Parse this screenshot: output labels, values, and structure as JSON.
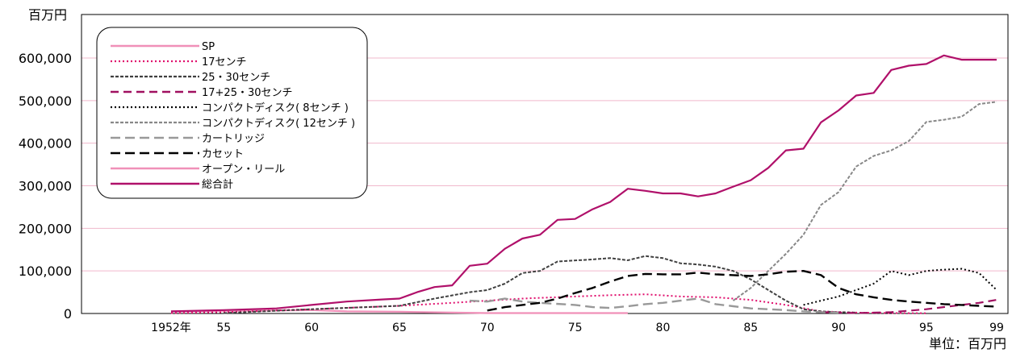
{
  "chart_data": {
    "type": "line",
    "ylabel": "百万円",
    "unit_note": "単位：百万円",
    "ylim": [
      0,
      650000
    ],
    "yticks": [
      0,
      100000,
      200000,
      300000,
      400000,
      500000,
      600000
    ],
    "ytick_labels": [
      "0",
      "100,000",
      "200,000",
      "300,000",
      "400,000",
      "500,000",
      "600,000"
    ],
    "xlim": [
      1950,
      1999.5
    ],
    "xticks": [
      1952,
      1955,
      1960,
      1965,
      1970,
      1975,
      1980,
      1985,
      1990,
      1995,
      1999
    ],
    "xtick_labels": [
      "1952年",
      "55",
      "60",
      "65",
      "70",
      "75",
      "80",
      "85",
      "90",
      "95",
      "99"
    ],
    "grid": true,
    "legend_position": "top-left",
    "series": [
      {
        "name": "SP",
        "color": "#f090b8",
        "dash": "solid",
        "points": [
          [
            1952,
            5000
          ],
          [
            1955,
            6000
          ],
          [
            1960,
            8000
          ],
          [
            1962,
            5000
          ],
          [
            1965,
            4000
          ],
          [
            1970,
            1000
          ],
          [
            1978,
            1000
          ]
        ]
      },
      {
        "name": "17センチ",
        "color": "#e0106e",
        "dash": "dotted",
        "points": [
          [
            1952,
            1000
          ],
          [
            1955,
            3000
          ],
          [
            1960,
            10000
          ],
          [
            1965,
            18000
          ],
          [
            1968,
            25000
          ],
          [
            1970,
            30000
          ],
          [
            1972,
            35000
          ],
          [
            1975,
            40000
          ],
          [
            1977,
            43000
          ],
          [
            1979,
            45000
          ],
          [
            1981,
            40000
          ],
          [
            1983,
            38000
          ],
          [
            1985,
            32000
          ],
          [
            1987,
            20000
          ],
          [
            1989,
            5000
          ],
          [
            1991,
            2000
          ],
          [
            1993,
            1000
          ],
          [
            1995,
            500
          ]
        ]
      },
      {
        "name": "25・30センチ",
        "color": "#404040",
        "dash": "densedash",
        "points": [
          [
            1955,
            1000
          ],
          [
            1960,
            10000
          ],
          [
            1965,
            18000
          ],
          [
            1967,
            35000
          ],
          [
            1969,
            50000
          ],
          [
            1970,
            55000
          ],
          [
            1971,
            70000
          ],
          [
            1972,
            95000
          ],
          [
            1973,
            100000
          ],
          [
            1974,
            122000
          ],
          [
            1976,
            127000
          ],
          [
            1977,
            130000
          ],
          [
            1978,
            125000
          ],
          [
            1979,
            135000
          ],
          [
            1980,
            130000
          ],
          [
            1981,
            118000
          ],
          [
            1982,
            115000
          ],
          [
            1983,
            110000
          ],
          [
            1984,
            100000
          ],
          [
            1985,
            80000
          ],
          [
            1986,
            55000
          ],
          [
            1987,
            30000
          ],
          [
            1988,
            10000
          ],
          [
            1989,
            5000
          ],
          [
            1990,
            3000
          ],
          [
            1991,
            2000
          ]
        ]
      },
      {
        "name": "17+25・30センチ",
        "color": "#a01060",
        "dash": "dashed",
        "points": [
          [
            1989,
            3000
          ],
          [
            1990,
            2000
          ],
          [
            1991,
            1000
          ],
          [
            1993,
            3000
          ],
          [
            1995,
            10000
          ],
          [
            1997,
            20000
          ],
          [
            1998,
            25000
          ],
          [
            1999,
            32000
          ]
        ]
      },
      {
        "name": "コンパクトディスク( 8センチ )",
        "color": "#000000",
        "dash": "dotted",
        "points": [
          [
            1988,
            20000
          ],
          [
            1989,
            30000
          ],
          [
            1990,
            40000
          ],
          [
            1991,
            55000
          ],
          [
            1992,
            70000
          ],
          [
            1993,
            100000
          ],
          [
            1994,
            90000
          ],
          [
            1995,
            100000
          ],
          [
            1996,
            103000
          ],
          [
            1997,
            105000
          ],
          [
            1998,
            95000
          ],
          [
            1999,
            55000
          ]
        ]
      },
      {
        "name": "コンパクトディスク( 12センチ )",
        "color": "#888888",
        "dash": "densedash",
        "points": [
          [
            1984,
            30000
          ],
          [
            1985,
            60000
          ],
          [
            1986,
            100000
          ],
          [
            1987,
            140000
          ],
          [
            1988,
            185000
          ],
          [
            1989,
            255000
          ],
          [
            1990,
            285000
          ],
          [
            1991,
            345000
          ],
          [
            1992,
            370000
          ],
          [
            1993,
            383000
          ],
          [
            1994,
            405000
          ],
          [
            1995,
            450000
          ],
          [
            1996,
            455000
          ],
          [
            1997,
            462000
          ],
          [
            1998,
            492000
          ],
          [
            1999,
            497000
          ]
        ]
      },
      {
        "name": "カートリッジ",
        "color": "#999999",
        "dash": "longdash",
        "points": [
          [
            1969,
            30000
          ],
          [
            1970,
            28000
          ],
          [
            1971,
            35000
          ],
          [
            1972,
            28000
          ],
          [
            1973,
            25000
          ],
          [
            1975,
            20000
          ],
          [
            1976,
            15000
          ],
          [
            1977,
            13000
          ],
          [
            1978,
            17000
          ],
          [
            1979,
            22000
          ],
          [
            1980,
            25000
          ],
          [
            1981,
            30000
          ],
          [
            1982,
            35000
          ],
          [
            1983,
            22000
          ],
          [
            1984,
            17000
          ],
          [
            1985,
            12000
          ],
          [
            1986,
            10000
          ],
          [
            1987,
            8000
          ],
          [
            1988,
            5000
          ],
          [
            1989,
            3000
          ],
          [
            1990,
            2000
          ]
        ]
      },
      {
        "name": "カセット",
        "color": "#000000",
        "dash": "longdash",
        "points": [
          [
            1970,
            7000
          ],
          [
            1971,
            15000
          ],
          [
            1972,
            20000
          ],
          [
            1973,
            25000
          ],
          [
            1974,
            35000
          ],
          [
            1975,
            48000
          ],
          [
            1976,
            60000
          ],
          [
            1977,
            75000
          ],
          [
            1978,
            88000
          ],
          [
            1979,
            93000
          ],
          [
            1980,
            92000
          ],
          [
            1981,
            92000
          ],
          [
            1982,
            96000
          ],
          [
            1983,
            92000
          ],
          [
            1984,
            90000
          ],
          [
            1985,
            88000
          ],
          [
            1986,
            92000
          ],
          [
            1987,
            98000
          ],
          [
            1988,
            100000
          ],
          [
            1989,
            90000
          ],
          [
            1990,
            60000
          ],
          [
            1991,
            45000
          ],
          [
            1992,
            38000
          ],
          [
            1993,
            32000
          ],
          [
            1994,
            28000
          ],
          [
            1995,
            25000
          ],
          [
            1996,
            22000
          ],
          [
            1997,
            20000
          ],
          [
            1998,
            18000
          ],
          [
            1999,
            16000
          ]
        ]
      },
      {
        "name": "オープン・リール",
        "color": "#f090b8",
        "dash": "solid",
        "points": []
      },
      {
        "name": "総合計",
        "color": "#b0106a",
        "dash": "solid",
        "points": [
          [
            1952,
            5000
          ],
          [
            1955,
            8000
          ],
          [
            1958,
            12000
          ],
          [
            1960,
            20000
          ],
          [
            1962,
            28000
          ],
          [
            1964,
            33000
          ],
          [
            1965,
            35000
          ],
          [
            1966,
            50000
          ],
          [
            1967,
            62000
          ],
          [
            1968,
            66000
          ],
          [
            1969,
            112000
          ],
          [
            1970,
            117000
          ],
          [
            1971,
            152000
          ],
          [
            1972,
            176000
          ],
          [
            1973,
            185000
          ],
          [
            1974,
            220000
          ],
          [
            1975,
            222000
          ],
          [
            1976,
            245000
          ],
          [
            1977,
            262000
          ],
          [
            1978,
            293000
          ],
          [
            1979,
            288000
          ],
          [
            1980,
            282000
          ],
          [
            1981,
            282000
          ],
          [
            1982,
            275000
          ],
          [
            1983,
            282000
          ],
          [
            1984,
            298000
          ],
          [
            1985,
            313000
          ],
          [
            1986,
            342000
          ],
          [
            1987,
            383000
          ],
          [
            1988,
            387000
          ],
          [
            1989,
            449000
          ],
          [
            1990,
            477000
          ],
          [
            1991,
            512000
          ],
          [
            1992,
            518000
          ],
          [
            1993,
            572000
          ],
          [
            1994,
            582000
          ],
          [
            1995,
            586000
          ],
          [
            1996,
            606000
          ],
          [
            1997,
            596000
          ],
          [
            1998,
            596000
          ],
          [
            1999,
            596000
          ]
        ]
      }
    ]
  }
}
